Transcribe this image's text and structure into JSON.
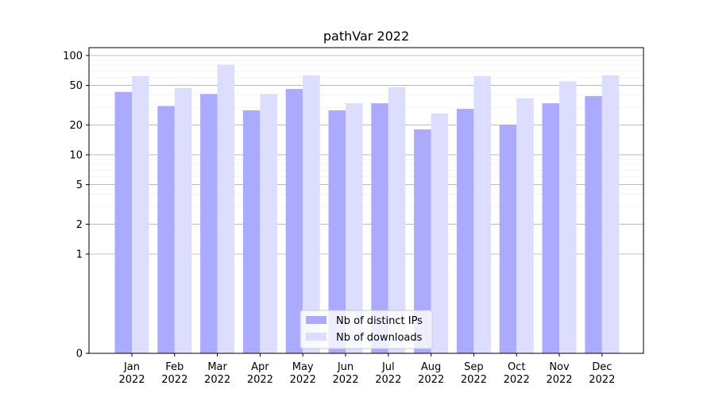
{
  "chart_data": {
    "type": "bar",
    "title": "pathVar 2022",
    "xlabel": "",
    "ylabel": "",
    "categories": [
      "Jan\n2022",
      "Feb\n2022",
      "Mar\n2022",
      "Apr\n2022",
      "May\n2022",
      "Jun\n2022",
      "Jul\n2022",
      "Aug\n2022",
      "Sep\n2022",
      "Oct\n2022",
      "Nov\n2022",
      "Dec\n2022"
    ],
    "series": [
      {
        "name": "Nb of distinct IPs",
        "color": "#aaaaff",
        "values": [
          43,
          31,
          41,
          28,
          46,
          28,
          33,
          18,
          29,
          20,
          33,
          39
        ]
      },
      {
        "name": "Nb of downloads",
        "color": "#ddddff",
        "values": [
          62,
          47,
          81,
          41,
          63,
          33,
          48,
          26,
          62,
          37,
          55,
          63
        ]
      }
    ],
    "y_scale": "symlog",
    "ylim": [
      0,
      120
    ],
    "y_ticks": [
      0,
      1,
      2,
      5,
      10,
      20,
      50,
      100
    ],
    "grid": true,
    "legend_position": "bottom-center"
  }
}
